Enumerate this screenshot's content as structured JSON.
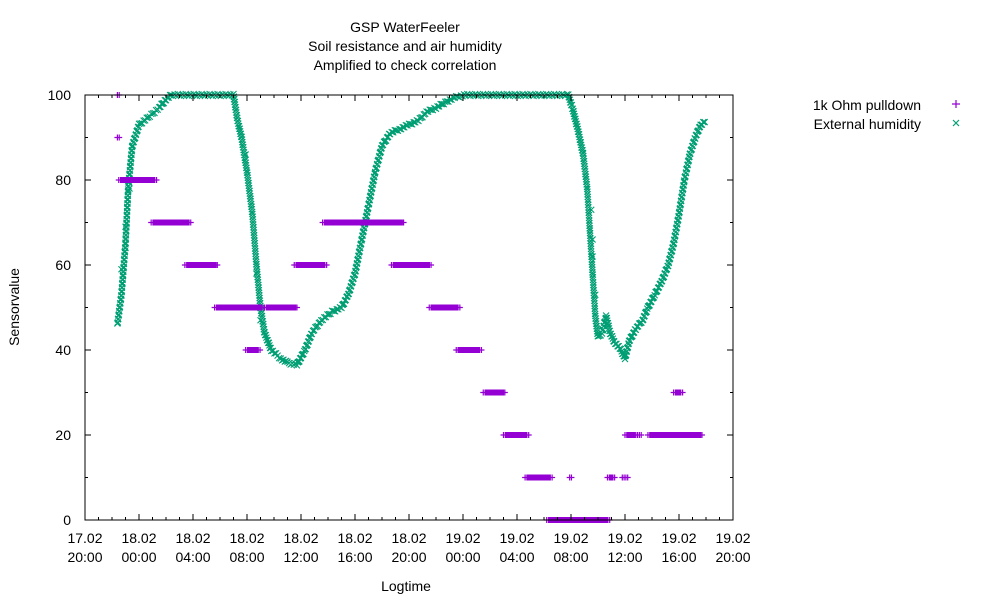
{
  "chart_data": {
    "type": "scatter",
    "title_lines": [
      "GSP WaterFeeler",
      "Soil resistance and air humidity",
      "Amplified to check correlation"
    ],
    "xlabel": "Logtime",
    "ylabel": "Sensorvalue",
    "xlim_hours": [
      0,
      48
    ],
    "ylim": [
      0,
      100
    ],
    "x_ticks": [
      {
        "h": 0,
        "date": "17.02",
        "time": "20:00"
      },
      {
        "h": 4,
        "date": "18.02",
        "time": "00:00"
      },
      {
        "h": 8,
        "date": "18.02",
        "time": "04:00"
      },
      {
        "h": 12,
        "date": "18.02",
        "time": "08:00"
      },
      {
        "h": 16,
        "date": "18.02",
        "time": "12:00"
      },
      {
        "h": 20,
        "date": "18.02",
        "time": "16:00"
      },
      {
        "h": 24,
        "date": "18.02",
        "time": "20:00"
      },
      {
        "h": 28,
        "date": "19.02",
        "time": "00:00"
      },
      {
        "h": 32,
        "date": "19.02",
        "time": "04:00"
      },
      {
        "h": 36,
        "date": "19.02",
        "time": "08:00"
      },
      {
        "h": 40,
        "date": "19.02",
        "time": "12:00"
      },
      {
        "h": 44,
        "date": "19.02",
        "time": "16:00"
      },
      {
        "h": 48,
        "date": "19.02",
        "time": "20:00"
      }
    ],
    "y_ticks": [
      "0",
      "20",
      "40",
      "60",
      "80",
      "100"
    ],
    "legend_position": "outside-right-top",
    "series": [
      {
        "name": "1k Ohm pulldown",
        "color": "#9400d3",
        "marker": "plus",
        "segments": [
          [
            2.4,
            2.6,
            100
          ],
          [
            2.4,
            2.6,
            90
          ],
          [
            2.5,
            5.3,
            80
          ],
          [
            4.9,
            7.9,
            70
          ],
          [
            7.4,
            9.9,
            60
          ],
          [
            9.6,
            13.2,
            50
          ],
          [
            11.9,
            13.0,
            40
          ],
          [
            13.3,
            15.8,
            50
          ],
          [
            15.5,
            17.9,
            60
          ],
          [
            17.6,
            23.7,
            70
          ],
          [
            22.7,
            25.7,
            60
          ],
          [
            25.5,
            27.8,
            50
          ],
          [
            27.5,
            29.4,
            40
          ],
          [
            29.5,
            31.2,
            30
          ],
          [
            31.0,
            32.9,
            20
          ],
          [
            32.6,
            34.6,
            10
          ],
          [
            34.2,
            38.9,
            0
          ],
          [
            35.9,
            36.1,
            10
          ],
          [
            38.7,
            39.3,
            10
          ],
          [
            39.8,
            40.2,
            10
          ],
          [
            40.0,
            40.9,
            20
          ],
          [
            40.8,
            41.2,
            20
          ],
          [
            41.7,
            45.8,
            20
          ],
          [
            43.6,
            44.3,
            30
          ]
        ]
      },
      {
        "name": "External humidity",
        "color": "#009e73",
        "marker": "cross",
        "curve": [
          [
            2.4,
            46
          ],
          [
            2.7,
            53
          ],
          [
            3.0,
            65
          ],
          [
            3.2,
            78
          ],
          [
            3.5,
            88
          ],
          [
            4.0,
            93
          ],
          [
            4.8,
            95
          ],
          [
            5.5,
            97
          ],
          [
            6.0,
            99
          ],
          [
            6.4,
            100
          ],
          [
            11.0,
            100
          ],
          [
            11.3,
            94
          ],
          [
            11.6,
            90
          ],
          [
            12.0,
            82
          ],
          [
            12.4,
            72
          ],
          [
            12.7,
            60
          ],
          [
            13.0,
            50
          ],
          [
            13.3,
            44
          ],
          [
            13.8,
            40
          ],
          [
            14.5,
            38
          ],
          [
            15.0,
            37
          ],
          [
            15.7,
            36.5
          ],
          [
            16.3,
            40
          ],
          [
            16.8,
            44
          ],
          [
            17.5,
            47
          ],
          [
            18.3,
            49
          ],
          [
            19.0,
            50
          ],
          [
            19.5,
            53
          ],
          [
            20.0,
            58
          ],
          [
            20.5,
            66
          ],
          [
            21.0,
            74
          ],
          [
            21.5,
            82
          ],
          [
            22.0,
            88
          ],
          [
            22.6,
            91
          ],
          [
            23.3,
            92
          ],
          [
            24.0,
            93
          ],
          [
            24.7,
            94
          ],
          [
            25.3,
            96
          ],
          [
            26.0,
            97
          ],
          [
            26.8,
            98.5
          ],
          [
            27.5,
            99.5
          ],
          [
            28.2,
            100
          ],
          [
            35.8,
            100
          ],
          [
            36.1,
            97
          ],
          [
            36.5,
            92
          ],
          [
            36.9,
            86
          ],
          [
            37.2,
            78
          ],
          [
            37.4,
            68
          ],
          [
            37.6,
            58
          ],
          [
            37.8,
            48
          ],
          [
            38.0,
            43
          ],
          [
            38.3,
            44
          ],
          [
            38.6,
            48
          ],
          [
            38.9,
            44
          ],
          [
            39.2,
            42
          ],
          [
            39.7,
            40
          ],
          [
            40.0,
            38
          ],
          [
            40.3,
            42
          ],
          [
            40.8,
            45
          ],
          [
            41.3,
            47
          ],
          [
            41.7,
            50
          ],
          [
            42.2,
            53
          ],
          [
            42.7,
            56
          ],
          [
            43.2,
            60
          ],
          [
            43.6,
            65
          ],
          [
            44.0,
            72
          ],
          [
            44.4,
            80
          ],
          [
            44.8,
            86
          ],
          [
            45.2,
            90
          ],
          [
            45.6,
            93
          ],
          [
            46.0,
            94
          ]
        ],
        "scatter_outliers": [
          [
            2.7,
            59
          ],
          [
            3.0,
            64
          ],
          [
            3.0,
            69
          ],
          [
            3.3,
            78
          ],
          [
            11.9,
            86
          ],
          [
            12.7,
            58
          ],
          [
            13.0,
            47
          ],
          [
            37.5,
            73
          ],
          [
            37.6,
            66
          ],
          [
            37.6,
            62
          ],
          [
            37.8,
            53
          ]
        ]
      }
    ]
  }
}
